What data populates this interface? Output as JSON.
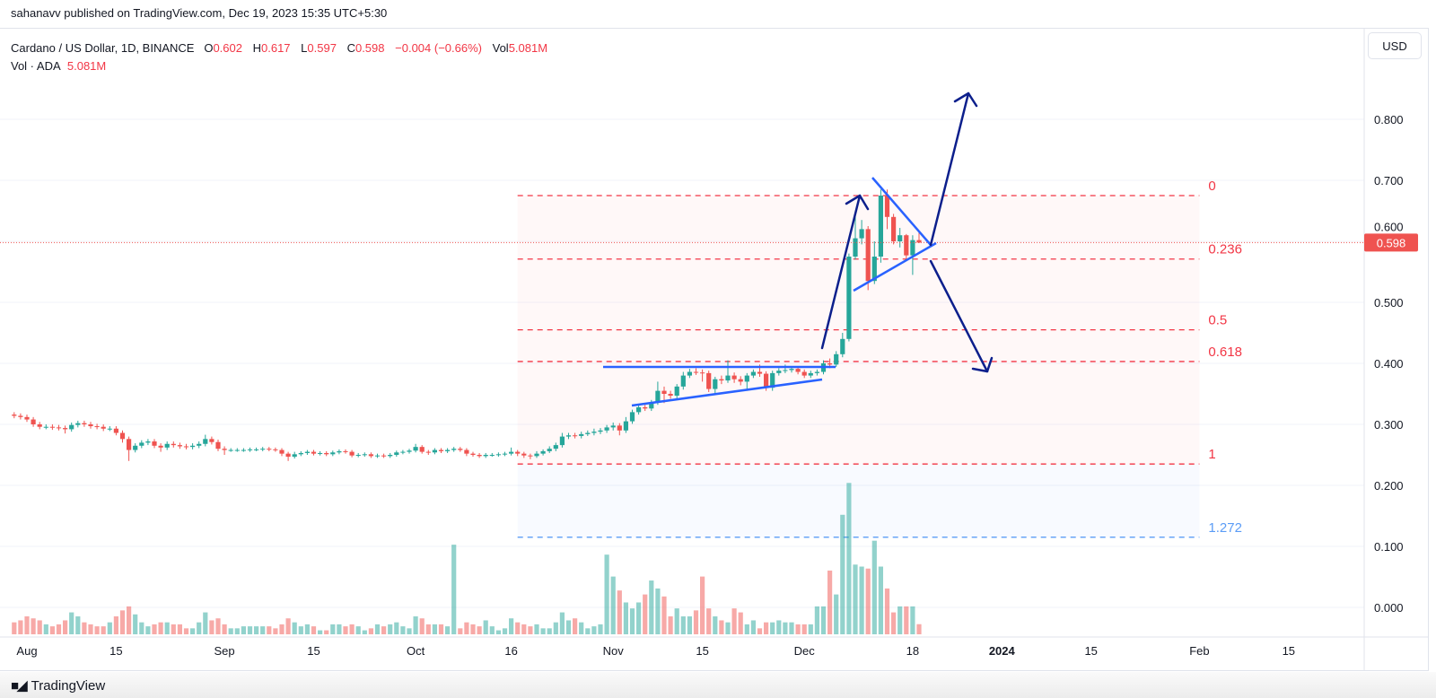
{
  "publisher_line": "sahanavv published on TradingView.com, Dec 19, 2023 15:35 UTC+5:30",
  "legend": {
    "symbol": "Cardano / US Dollar, 1D, BINANCE",
    "open_label": "O",
    "open": "0.602",
    "high_label": "H",
    "high": "0.617",
    "low_label": "L",
    "low": "0.597",
    "close_label": "C",
    "close": "0.598",
    "change": "−0.004 (−0.66%)",
    "vol_label": "Vol",
    "vol": "5.081M",
    "vol_series_label": "Vol · ADA",
    "vol_series_value": "5.081M"
  },
  "currency_button": "USD",
  "last_price_label": "0.598",
  "footer_brand": "TradingView",
  "colors": {
    "up": "#26a69a",
    "down": "#ef5350",
    "fib": "#f23645",
    "fib_ext": "#5b9cf6",
    "trendline": "#2962ff",
    "arrow": "#0c1f8c"
  },
  "chart_data": {
    "type": "candlestick",
    "symbol": "ADA/USD",
    "interval": "1D",
    "ylim": [
      0,
      0.85
    ],
    "price_ticks": [
      "0.800",
      "0.700",
      "0.600",
      "0.500",
      "0.400",
      "0.300",
      "0.200",
      "0.100",
      "0.000"
    ],
    "grid": true,
    "time_ticks": [
      {
        "label": "Aug",
        "date": "2023-08-01"
      },
      {
        "label": "15",
        "date": "2023-08-15"
      },
      {
        "label": "Sep",
        "date": "2023-09-01"
      },
      {
        "label": "15",
        "date": "2023-09-15"
      },
      {
        "label": "Oct",
        "date": "2023-10-01"
      },
      {
        "label": "16",
        "date": "2023-10-16"
      },
      {
        "label": "Nov",
        "date": "2023-11-01"
      },
      {
        "label": "15",
        "date": "2023-11-15"
      },
      {
        "label": "Dec",
        "date": "2023-12-01"
      },
      {
        "label": "18",
        "date": "2023-12-18"
      },
      {
        "label": "2024",
        "date": "2024-01-01",
        "bold": true
      },
      {
        "label": "15",
        "date": "2024-01-15"
      },
      {
        "label": "Feb",
        "date": "2024-02-01"
      },
      {
        "label": "15",
        "date": "2024-02-15"
      }
    ],
    "candle_columns": [
      "date",
      "open",
      "high",
      "low",
      "close",
      "volume_M"
    ],
    "candles": [
      [
        "2023-07-30",
        0.316,
        0.32,
        0.31,
        0.314,
        6
      ],
      [
        "2023-07-31",
        0.314,
        0.318,
        0.308,
        0.312,
        7
      ],
      [
        "2023-08-01",
        0.312,
        0.316,
        0.304,
        0.308,
        9
      ],
      [
        "2023-08-02",
        0.308,
        0.312,
        0.296,
        0.3,
        8
      ],
      [
        "2023-08-03",
        0.3,
        0.304,
        0.292,
        0.296,
        7
      ],
      [
        "2023-08-04",
        0.296,
        0.3,
        0.292,
        0.296,
        5
      ],
      [
        "2023-08-05",
        0.296,
        0.3,
        0.291,
        0.295,
        4
      ],
      [
        "2023-08-06",
        0.295,
        0.299,
        0.29,
        0.294,
        5
      ],
      [
        "2023-08-07",
        0.294,
        0.298,
        0.285,
        0.292,
        7
      ],
      [
        "2023-08-08",
        0.292,
        0.303,
        0.288,
        0.299,
        11
      ],
      [
        "2023-08-09",
        0.299,
        0.306,
        0.295,
        0.302,
        9
      ],
      [
        "2023-08-10",
        0.302,
        0.306,
        0.296,
        0.3,
        6
      ],
      [
        "2023-08-11",
        0.3,
        0.304,
        0.293,
        0.297,
        5
      ],
      [
        "2023-08-12",
        0.297,
        0.301,
        0.292,
        0.296,
        4
      ],
      [
        "2023-08-13",
        0.296,
        0.3,
        0.289,
        0.293,
        4
      ],
      [
        "2023-08-14",
        0.293,
        0.297,
        0.289,
        0.293,
        6
      ],
      [
        "2023-08-15",
        0.293,
        0.297,
        0.282,
        0.286,
        9
      ],
      [
        "2023-08-16",
        0.286,
        0.29,
        0.27,
        0.276,
        12
      ],
      [
        "2023-08-17",
        0.276,
        0.28,
        0.24,
        0.258,
        14
      ],
      [
        "2023-08-18",
        0.258,
        0.269,
        0.254,
        0.265,
        10
      ],
      [
        "2023-08-19",
        0.265,
        0.274,
        0.261,
        0.27,
        6
      ],
      [
        "2023-08-20",
        0.27,
        0.276,
        0.266,
        0.272,
        4
      ],
      [
        "2023-08-21",
        0.272,
        0.276,
        0.261,
        0.265,
        5
      ],
      [
        "2023-08-22",
        0.265,
        0.269,
        0.255,
        0.262,
        6
      ],
      [
        "2023-08-23",
        0.262,
        0.272,
        0.258,
        0.268,
        6
      ],
      [
        "2023-08-24",
        0.268,
        0.272,
        0.262,
        0.266,
        5
      ],
      [
        "2023-08-25",
        0.266,
        0.27,
        0.26,
        0.264,
        5
      ],
      [
        "2023-08-26",
        0.264,
        0.268,
        0.259,
        0.263,
        3
      ],
      [
        "2023-08-27",
        0.263,
        0.269,
        0.259,
        0.265,
        3
      ],
      [
        "2023-08-28",
        0.265,
        0.272,
        0.261,
        0.268,
        6
      ],
      [
        "2023-08-29",
        0.268,
        0.283,
        0.264,
        0.276,
        11
      ],
      [
        "2023-08-30",
        0.276,
        0.28,
        0.267,
        0.271,
        7
      ],
      [
        "2023-08-31",
        0.271,
        0.275,
        0.256,
        0.26,
        8
      ],
      [
        "2023-09-01",
        0.26,
        0.264,
        0.25,
        0.258,
        5
      ],
      [
        "2023-09-02",
        0.258,
        0.261,
        0.255,
        0.258,
        3
      ],
      [
        "2023-09-03",
        0.258,
        0.261,
        0.255,
        0.258,
        3
      ],
      [
        "2023-09-04",
        0.258,
        0.261,
        0.255,
        0.258,
        4
      ],
      [
        "2023-09-05",
        0.258,
        0.262,
        0.255,
        0.259,
        4
      ],
      [
        "2023-09-06",
        0.259,
        0.262,
        0.256,
        0.259,
        4
      ],
      [
        "2023-09-07",
        0.259,
        0.263,
        0.256,
        0.26,
        4
      ],
      [
        "2023-09-08",
        0.26,
        0.263,
        0.256,
        0.259,
        4
      ],
      [
        "2023-09-09",
        0.259,
        0.262,
        0.255,
        0.258,
        3
      ],
      [
        "2023-09-10",
        0.258,
        0.261,
        0.248,
        0.252,
        5
      ],
      [
        "2023-09-11",
        0.252,
        0.255,
        0.24,
        0.247,
        8
      ],
      [
        "2023-09-12",
        0.247,
        0.255,
        0.244,
        0.251,
        6
      ],
      [
        "2023-09-13",
        0.251,
        0.256,
        0.248,
        0.253,
        4
      ],
      [
        "2023-09-14",
        0.253,
        0.258,
        0.25,
        0.255,
        5
      ],
      [
        "2023-09-15",
        0.255,
        0.258,
        0.249,
        0.252,
        4
      ],
      [
        "2023-09-16",
        0.252,
        0.256,
        0.249,
        0.253,
        2
      ],
      [
        "2023-09-17",
        0.253,
        0.256,
        0.248,
        0.251,
        2
      ],
      [
        "2023-09-18",
        0.251,
        0.257,
        0.248,
        0.254,
        5
      ],
      [
        "2023-09-19",
        0.254,
        0.259,
        0.251,
        0.256,
        5
      ],
      [
        "2023-09-20",
        0.256,
        0.259,
        0.252,
        0.255,
        4
      ],
      [
        "2023-09-21",
        0.255,
        0.258,
        0.246,
        0.249,
        5
      ],
      [
        "2023-09-22",
        0.249,
        0.253,
        0.246,
        0.25,
        4
      ],
      [
        "2023-09-23",
        0.25,
        0.254,
        0.247,
        0.251,
        2
      ],
      [
        "2023-09-24",
        0.251,
        0.254,
        0.245,
        0.248,
        3
      ],
      [
        "2023-09-25",
        0.248,
        0.252,
        0.245,
        0.249,
        5
      ],
      [
        "2023-09-26",
        0.249,
        0.252,
        0.245,
        0.248,
        4
      ],
      [
        "2023-09-27",
        0.248,
        0.253,
        0.245,
        0.25,
        5
      ],
      [
        "2023-09-28",
        0.25,
        0.257,
        0.247,
        0.254,
        6
      ],
      [
        "2023-09-29",
        0.254,
        0.258,
        0.251,
        0.255,
        4
      ],
      [
        "2023-09-30",
        0.255,
        0.26,
        0.252,
        0.257,
        3
      ],
      [
        "2023-10-01",
        0.257,
        0.268,
        0.254,
        0.263,
        9
      ],
      [
        "2023-10-02",
        0.263,
        0.266,
        0.252,
        0.255,
        8
      ],
      [
        "2023-10-03",
        0.255,
        0.258,
        0.25,
        0.254,
        5
      ],
      [
        "2023-10-04",
        0.254,
        0.261,
        0.251,
        0.258,
        5
      ],
      [
        "2023-10-05",
        0.258,
        0.261,
        0.253,
        0.256,
        5
      ],
      [
        "2023-10-06",
        0.256,
        0.261,
        0.253,
        0.258,
        4
      ],
      [
        "2023-10-07",
        0.258,
        0.263,
        0.255,
        0.26,
        45
      ],
      [
        "2023-10-08",
        0.26,
        0.263,
        0.255,
        0.258,
        3
      ],
      [
        "2023-10-09",
        0.258,
        0.261,
        0.248,
        0.252,
        6
      ],
      [
        "2023-10-10",
        0.252,
        0.255,
        0.247,
        0.25,
        5
      ],
      [
        "2023-10-11",
        0.25,
        0.253,
        0.245,
        0.248,
        4
      ],
      [
        "2023-10-12",
        0.248,
        0.253,
        0.245,
        0.25,
        7
      ],
      [
        "2023-10-13",
        0.25,
        0.253,
        0.247,
        0.25,
        4
      ],
      [
        "2023-10-14",
        0.25,
        0.254,
        0.247,
        0.251,
        2
      ],
      [
        "2023-10-15",
        0.251,
        0.255,
        0.248,
        0.252,
        3
      ],
      [
        "2023-10-16",
        0.252,
        0.262,
        0.249,
        0.255,
        8
      ],
      [
        "2023-10-17",
        0.255,
        0.258,
        0.248,
        0.252,
        6
      ],
      [
        "2023-10-18",
        0.252,
        0.255,
        0.245,
        0.249,
        5
      ],
      [
        "2023-10-19",
        0.249,
        0.252,
        0.243,
        0.248,
        4
      ],
      [
        "2023-10-20",
        0.248,
        0.256,
        0.245,
        0.252,
        5
      ],
      [
        "2023-10-21",
        0.252,
        0.259,
        0.249,
        0.256,
        3
      ],
      [
        "2023-10-22",
        0.256,
        0.264,
        0.253,
        0.26,
        3
      ],
      [
        "2023-10-23",
        0.26,
        0.27,
        0.256,
        0.266,
        6
      ],
      [
        "2023-10-24",
        0.266,
        0.286,
        0.262,
        0.28,
        11
      ],
      [
        "2023-10-25",
        0.28,
        0.286,
        0.276,
        0.282,
        7
      ],
      [
        "2023-10-26",
        0.282,
        0.286,
        0.277,
        0.281,
        8
      ],
      [
        "2023-10-27",
        0.281,
        0.288,
        0.277,
        0.284,
        6
      ],
      [
        "2023-10-28",
        0.284,
        0.29,
        0.281,
        0.286,
        3
      ],
      [
        "2023-10-29",
        0.286,
        0.293,
        0.282,
        0.288,
        4
      ],
      [
        "2023-10-30",
        0.288,
        0.294,
        0.284,
        0.29,
        5
      ],
      [
        "2023-10-31",
        0.29,
        0.299,
        0.286,
        0.295,
        40
      ],
      [
        "2023-11-01",
        0.295,
        0.303,
        0.29,
        0.298,
        29
      ],
      [
        "2023-11-02",
        0.298,
        0.302,
        0.282,
        0.29,
        22
      ],
      [
        "2023-11-03",
        0.29,
        0.312,
        0.286,
        0.305,
        16
      ],
      [
        "2023-11-04",
        0.305,
        0.324,
        0.301,
        0.32,
        13
      ],
      [
        "2023-11-05",
        0.32,
        0.332,
        0.316,
        0.328,
        16
      ],
      [
        "2023-11-06",
        0.328,
        0.332,
        0.322,
        0.326,
        20
      ],
      [
        "2023-11-07",
        0.326,
        0.34,
        0.322,
        0.336,
        27
      ],
      [
        "2023-11-08",
        0.336,
        0.37,
        0.332,
        0.355,
        23
      ],
      [
        "2023-11-09",
        0.355,
        0.362,
        0.335,
        0.35,
        19
      ],
      [
        "2023-11-10",
        0.35,
        0.355,
        0.342,
        0.347,
        9
      ],
      [
        "2023-11-11",
        0.347,
        0.366,
        0.342,
        0.362,
        13
      ],
      [
        "2023-11-12",
        0.362,
        0.386,
        0.357,
        0.38,
        9
      ],
      [
        "2023-11-13",
        0.38,
        0.391,
        0.376,
        0.386,
        9
      ],
      [
        "2023-11-14",
        0.386,
        0.392,
        0.381,
        0.385,
        12
      ],
      [
        "2023-11-15",
        0.385,
        0.39,
        0.37,
        0.384,
        29
      ],
      [
        "2023-11-16",
        0.384,
        0.388,
        0.353,
        0.358,
        13
      ],
      [
        "2023-11-17",
        0.358,
        0.378,
        0.348,
        0.374,
        9
      ],
      [
        "2023-11-18",
        0.374,
        0.38,
        0.366,
        0.372,
        7
      ],
      [
        "2023-11-19",
        0.372,
        0.405,
        0.368,
        0.38,
        6
      ],
      [
        "2023-11-20",
        0.38,
        0.385,
        0.368,
        0.374,
        13
      ],
      [
        "2023-11-21",
        0.374,
        0.379,
        0.364,
        0.37,
        11
      ],
      [
        "2023-11-22",
        0.37,
        0.384,
        0.355,
        0.38,
        5
      ],
      [
        "2023-11-23",
        0.38,
        0.39,
        0.376,
        0.386,
        7
      ],
      [
        "2023-11-24",
        0.386,
        0.398,
        0.378,
        0.383,
        3
      ],
      [
        "2023-11-25",
        0.383,
        0.387,
        0.355,
        0.36,
        6
      ],
      [
        "2023-11-26",
        0.36,
        0.388,
        0.355,
        0.384,
        6
      ],
      [
        "2023-11-27",
        0.384,
        0.392,
        0.38,
        0.388,
        7
      ],
      [
        "2023-11-28",
        0.388,
        0.398,
        0.384,
        0.389,
        6
      ],
      [
        "2023-11-29",
        0.389,
        0.395,
        0.385,
        0.391,
        6
      ],
      [
        "2023-11-30",
        0.391,
        0.395,
        0.382,
        0.386,
        5
      ],
      [
        "2023-12-01",
        0.386,
        0.39,
        0.376,
        0.38,
        5
      ],
      [
        "2023-12-02",
        0.38,
        0.388,
        0.376,
        0.384,
        5
      ],
      [
        "2023-12-03",
        0.384,
        0.39,
        0.38,
        0.386,
        14
      ],
      [
        "2023-12-04",
        0.386,
        0.405,
        0.382,
        0.4,
        14
      ],
      [
        "2023-12-05",
        0.4,
        0.408,
        0.392,
        0.398,
        32
      ],
      [
        "2023-12-06",
        0.398,
        0.42,
        0.394,
        0.415,
        20
      ],
      [
        "2023-12-07",
        0.415,
        0.45,
        0.41,
        0.44,
        60
      ],
      [
        "2023-12-08",
        0.44,
        0.58,
        0.436,
        0.575,
        76
      ],
      [
        "2023-12-09",
        0.575,
        0.65,
        0.57,
        0.605,
        35
      ],
      [
        "2023-12-10",
        0.605,
        0.635,
        0.595,
        0.62,
        34
      ],
      [
        "2023-12-11",
        0.62,
        0.625,
        0.52,
        0.535,
        33
      ],
      [
        "2023-12-12",
        0.535,
        0.6,
        0.53,
        0.575,
        47
      ],
      [
        "2023-12-13",
        0.575,
        0.685,
        0.565,
        0.675,
        34
      ],
      [
        "2023-12-14",
        0.675,
        0.685,
        0.62,
        0.64,
        23
      ],
      [
        "2023-12-15",
        0.64,
        0.645,
        0.595,
        0.6,
        11
      ],
      [
        "2023-12-16",
        0.6,
        0.622,
        0.59,
        0.61,
        14
      ],
      [
        "2023-12-17",
        0.61,
        0.612,
        0.572,
        0.577,
        14
      ],
      [
        "2023-12-18",
        0.577,
        0.61,
        0.545,
        0.602,
        14
      ],
      [
        "2023-12-19",
        0.602,
        0.617,
        0.597,
        0.598,
        5.081
      ]
    ],
    "fibonacci": {
      "from_date": "2023-10-17",
      "to_date": "2024-02-01",
      "levels": [
        {
          "label": "0",
          "price": 0.675
        },
        {
          "label": "0.236",
          "price": 0.571
        },
        {
          "label": "0.5",
          "price": 0.455
        },
        {
          "label": "0.618",
          "price": 0.403
        },
        {
          "label": "1",
          "price": 0.235
        },
        {
          "label": "1.272",
          "price": 0.115,
          "extension": true
        }
      ]
    }
  }
}
